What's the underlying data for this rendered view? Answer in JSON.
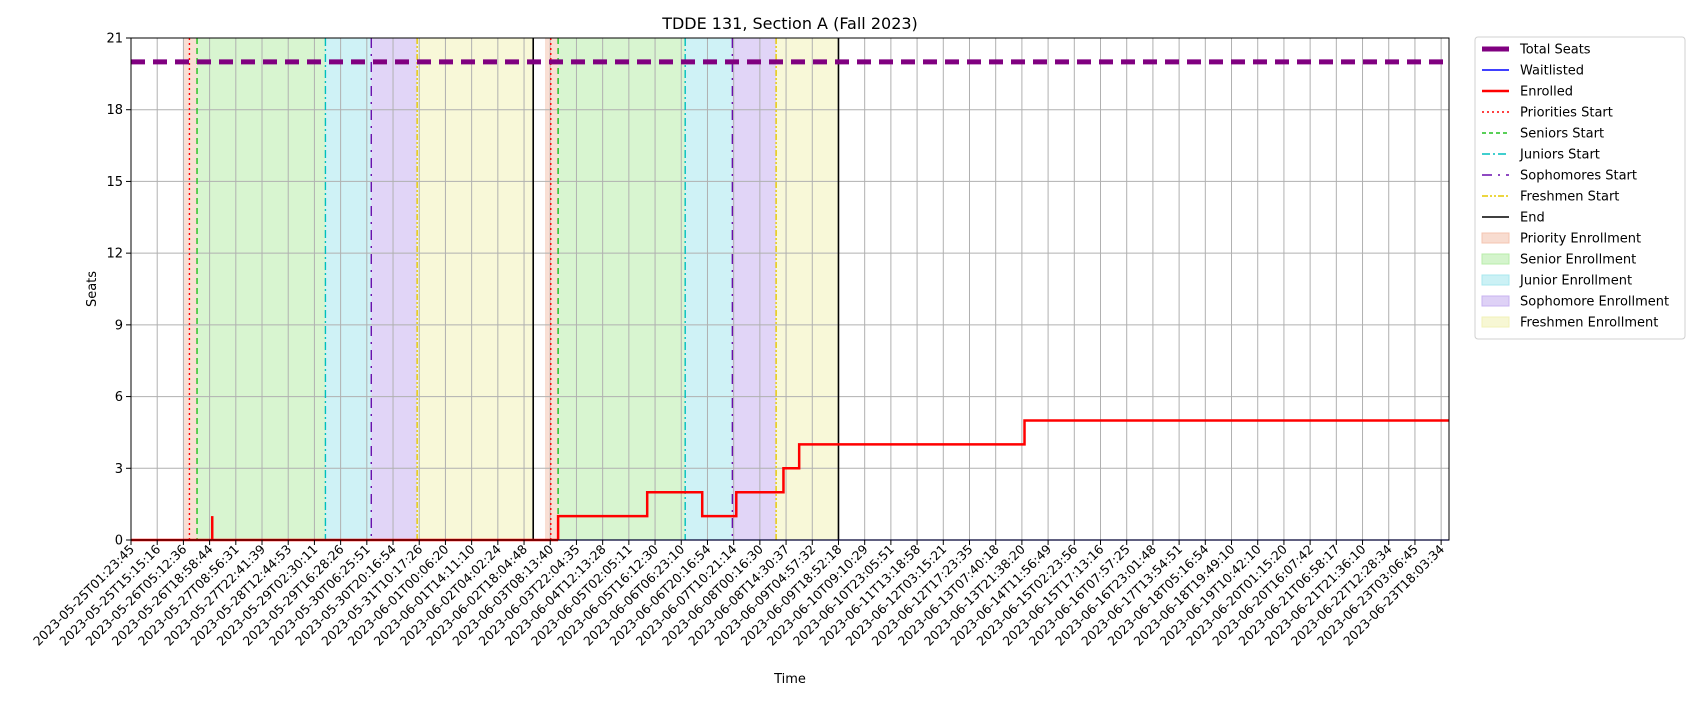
{
  "chart_data": {
    "type": "line",
    "title": "TDDE 131, Section A (Fall 2023)",
    "xlabel": "Time",
    "ylabel": "Seats",
    "ylim": [
      0,
      21
    ],
    "yticks": [
      0,
      3,
      6,
      9,
      12,
      15,
      18,
      21
    ],
    "grid": true,
    "legend_position": "outside right, top",
    "xtick_labels": [
      "2023-05-25T01:23:45",
      "2023-05-25T15:15:16",
      "2023-05-26T05:12:36",
      "2023-05-26T18:58:44",
      "2023-05-27T08:56:31",
      "2023-05-27T22:41:39",
      "2023-05-28T12:44:53",
      "2023-05-29T02:30:11",
      "2023-05-29T16:28:26",
      "2023-05-30T06:25:51",
      "2023-05-30T20:16:54",
      "2023-05-31T10:17:26",
      "2023-06-01T00:06:20",
      "2023-06-01T14:11:10",
      "2023-06-02T04:02:24",
      "2023-06-02T18:04:48",
      "2023-06-03T08:13:40",
      "2023-06-03T22:04:35",
      "2023-06-04T12:13:28",
      "2023-06-05T02:05:11",
      "2023-06-05T16:12:30",
      "2023-06-06T06:23:10",
      "2023-06-06T20:16:54",
      "2023-06-07T10:21:14",
      "2023-06-08T00:16:30",
      "2023-06-08T14:30:37",
      "2023-06-09T04:57:32",
      "2023-06-09T18:52:18",
      "2023-06-10T09:10:29",
      "2023-06-10T23:05:51",
      "2023-06-11T13:18:58",
      "2023-06-12T03:15:21",
      "2023-06-12T17:23:35",
      "2023-06-13T07:40:18",
      "2023-06-13T21:38:20",
      "2023-06-14T11:56:49",
      "2023-06-15T02:23:56",
      "2023-06-15T17:13:16",
      "2023-06-16T07:57:25",
      "2023-06-16T23:01:48",
      "2023-06-17T13:54:51",
      "2023-06-18T05:16:54",
      "2023-06-18T19:49:10",
      "2023-06-19T10:42:10",
      "2023-06-20T01:15:20",
      "2023-06-20T16:07:42",
      "2023-06-21T06:58:17",
      "2023-06-21T21:36:10",
      "2023-06-22T12:28:34",
      "2023-06-23T03:06:45",
      "2023-06-23T18:03:34"
    ],
    "x_index_range": [
      0,
      50.3
    ],
    "series": [
      {
        "name": "Total Seats",
        "color": "#800080",
        "style": "dashed-thick",
        "x": [
          0,
          50.3
        ],
        "y": [
          20,
          20
        ]
      },
      {
        "name": "Waitlisted",
        "color": "#0000ff",
        "style": "solid-thin",
        "x": [
          0,
          50.3
        ],
        "y": [
          0,
          0
        ]
      },
      {
        "name": "Enrolled",
        "color": "#ff0000",
        "style": "steps",
        "segments": [
          {
            "x": [
              0,
              3.1
            ],
            "y": [
              0,
              0
            ]
          },
          {
            "x": [
              3.1,
              3.1
            ],
            "y": [
              1,
              0
            ]
          },
          {
            "x": [
              3.1,
              16.3
            ],
            "y": [
              0,
              0
            ]
          },
          {
            "x": [
              16.3,
              16.3,
              19.7,
              19.7,
              21.8,
              21.8,
              23.1,
              23.1,
              24.9,
              24.9,
              25.5,
              25.5,
              34.1,
              34.1,
              50.3
            ],
            "y": [
              0,
              1,
              1,
              2,
              2,
              1,
              1,
              2,
              2,
              3,
              3,
              4,
              4,
              5,
              5
            ]
          }
        ]
      }
    ],
    "vertical_lines": [
      {
        "name": "Priorities Start",
        "color": "#ff0000",
        "style": "dotted",
        "x": [
          2.23,
          16.02
        ]
      },
      {
        "name": "Seniors Start",
        "color": "#22c020",
        "style": "dashed",
        "x": [
          2.52,
          16.3
        ]
      },
      {
        "name": "Juniors Start",
        "color": "#00bfbf",
        "style": "dashdot",
        "x": [
          7.42,
          21.15
        ]
      },
      {
        "name": "Sophomores Start",
        "color": "#6a0dad",
        "style": "loosely-dashdot",
        "x": [
          9.17,
          22.95
        ]
      },
      {
        "name": "Freshmen Start",
        "color": "#e6c800",
        "style": "dashdotdot",
        "x": [
          10.92,
          24.62
        ]
      },
      {
        "name": "End",
        "color": "#000000",
        "style": "solid",
        "x": [
          15.35,
          27.0
        ]
      }
    ],
    "shaded_regions": [
      {
        "name": "Priority Enrollment",
        "color": "#f4c4b0",
        "ranges": [
          [
            2.0,
            2.52
          ],
          [
            15.8,
            16.3
          ]
        ]
      },
      {
        "name": "Senior Enrollment",
        "color": "#b8ecaa",
        "ranges": [
          [
            2.52,
            7.42
          ],
          [
            16.3,
            21.15
          ]
        ]
      },
      {
        "name": "Junior Enrollment",
        "color": "#a8e8ee",
        "ranges": [
          [
            7.42,
            9.17
          ],
          [
            21.15,
            22.95
          ]
        ]
      },
      {
        "name": "Sophomore Enrollment",
        "color": "#c8b3f0",
        "ranges": [
          [
            9.17,
            10.92
          ],
          [
            22.95,
            24.62
          ]
        ]
      },
      {
        "name": "Freshmen Enrollment",
        "color": "#f2f2b8",
        "ranges": [
          [
            10.92,
            15.35
          ],
          [
            24.62,
            27.0
          ]
        ]
      }
    ],
    "legend": [
      {
        "label": "Total Seats",
        "kind": "line",
        "color": "#800080",
        "style": "thick"
      },
      {
        "label": "Waitlisted",
        "kind": "line",
        "color": "#0000ff",
        "style": "solid-thin"
      },
      {
        "label": "Enrolled",
        "kind": "line",
        "color": "#ff0000",
        "style": "solid-thick"
      },
      {
        "label": "Priorities Start",
        "kind": "line",
        "color": "#ff0000",
        "style": "dotted"
      },
      {
        "label": "Seniors Start",
        "kind": "line",
        "color": "#22c020",
        "style": "dashed"
      },
      {
        "label": "Juniors Start",
        "kind": "line",
        "color": "#00bfbf",
        "style": "dashdot"
      },
      {
        "label": "Sophomores Start",
        "kind": "line",
        "color": "#6a0dad",
        "style": "loosely-dashdot"
      },
      {
        "label": "Freshmen Start",
        "kind": "line",
        "color": "#e6c800",
        "style": "dashdotdot"
      },
      {
        "label": "End",
        "kind": "line",
        "color": "#000000",
        "style": "solid"
      },
      {
        "label": "Priority Enrollment",
        "kind": "patch",
        "color": "#f4c4b0"
      },
      {
        "label": "Senior Enrollment",
        "kind": "patch",
        "color": "#b8ecaa"
      },
      {
        "label": "Junior Enrollment",
        "kind": "patch",
        "color": "#a8e8ee"
      },
      {
        "label": "Sophomore Enrollment",
        "kind": "patch",
        "color": "#c8b3f0"
      },
      {
        "label": "Freshmen Enrollment",
        "kind": "patch",
        "color": "#f2f2b8"
      }
    ]
  }
}
